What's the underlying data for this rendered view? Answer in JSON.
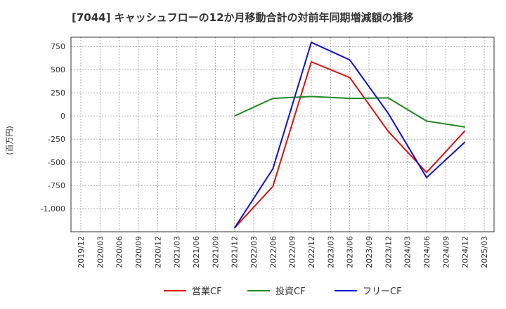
{
  "chart_data": {
    "type": "line",
    "title": "[7044]  キャッシュフローの12か月移動合計の対前年同期増減額の推移",
    "ylabel": "(百万円)",
    "xlabel": "",
    "ylim": [
      -1250,
      850
    ],
    "y_ticks": [
      750,
      500,
      250,
      0,
      -250,
      -500,
      -750,
      -1000
    ],
    "y_tick_labels": [
      "750",
      "500",
      "250",
      "0",
      "-250",
      "-500",
      "-750",
      "-1,000"
    ],
    "x_categories": [
      "2019/12",
      "2020/03",
      "2020/06",
      "2020/09",
      "2020/12",
      "2021/03",
      "2021/06",
      "2021/09",
      "2021/12",
      "2022/03",
      "2022/06",
      "2022/09",
      "2022/12",
      "2023/03",
      "2023/06",
      "2023/09",
      "2023/12",
      "2024/03",
      "2024/06",
      "2024/09",
      "2024/12",
      "2025/03"
    ],
    "grid": true,
    "legend_position": "bottom-center",
    "series": [
      {
        "name": "営業CF",
        "color": "#dd1111",
        "points": [
          {
            "x": "2021/12",
            "y": -1210
          },
          {
            "x": "2022/06",
            "y": -760
          },
          {
            "x": "2022/12",
            "y": 585
          },
          {
            "x": "2023/06",
            "y": 415
          },
          {
            "x": "2023/12",
            "y": -165
          },
          {
            "x": "2024/06",
            "y": -610
          },
          {
            "x": "2024/12",
            "y": -160
          }
        ]
      },
      {
        "name": "投資CF",
        "color": "#228822",
        "points": [
          {
            "x": "2021/12",
            "y": 0
          },
          {
            "x": "2022/06",
            "y": 190
          },
          {
            "x": "2022/12",
            "y": 210
          },
          {
            "x": "2023/06",
            "y": 190
          },
          {
            "x": "2023/12",
            "y": 195
          },
          {
            "x": "2024/06",
            "y": -55
          },
          {
            "x": "2024/12",
            "y": -120
          }
        ]
      },
      {
        "name": "フリーCF",
        "color": "#1111cc",
        "points": [
          {
            "x": "2021/12",
            "y": -1210
          },
          {
            "x": "2022/06",
            "y": -570
          },
          {
            "x": "2022/12",
            "y": 795
          },
          {
            "x": "2023/06",
            "y": 605
          },
          {
            "x": "2023/12",
            "y": 30
          },
          {
            "x": "2024/06",
            "y": -665
          },
          {
            "x": "2024/12",
            "y": -280
          }
        ]
      }
    ]
  }
}
